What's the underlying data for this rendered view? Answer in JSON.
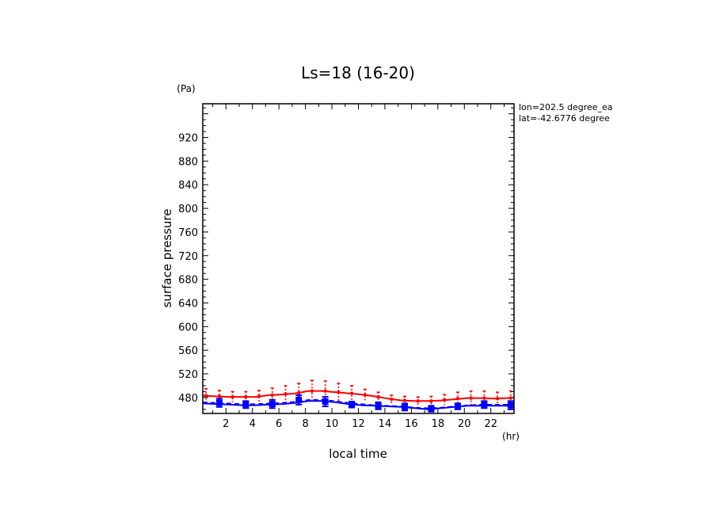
{
  "chart_data": {
    "type": "line",
    "title": "Ls=18 (16-20)",
    "xlabel": "local time",
    "ylabel": "surface pressure",
    "x_unit": "(hr)",
    "y_unit": "(Pa)",
    "annotations": [
      "lon=202.5 degree_ea",
      "lat=-42.6776 degree"
    ],
    "xlim": [
      0.25,
      23.75
    ],
    "ylim": [
      453,
      977
    ],
    "x_ticks": [
      2,
      4,
      6,
      8,
      10,
      12,
      14,
      16,
      18,
      20,
      22
    ],
    "y_ticks": [
      480,
      520,
      560,
      600,
      640,
      680,
      720,
      760,
      800,
      840,
      880,
      920
    ],
    "x": [
      0.25,
      1.25,
      2.25,
      3.25,
      4.25,
      5.25,
      6.25,
      7.25,
      8.25,
      9.25,
      10.25,
      11.25,
      12.25,
      13.25,
      14.25,
      15.25,
      16.25,
      17.25,
      18.25,
      19.25,
      20.25,
      21.25,
      22.25,
      23.25,
      23.75
    ],
    "grid": false,
    "series": [
      {
        "color": "#ff0000",
        "values": [
          483,
          482,
          481,
          481,
          481,
          484,
          485,
          487,
          491,
          491,
          489,
          487,
          485,
          482,
          478,
          475,
          474,
          474,
          475,
          477,
          479,
          479,
          478,
          479,
          480
        ]
      },
      {
        "color": "#0000ff",
        "values": [
          470,
          469,
          468,
          467,
          467,
          468,
          469,
          471,
          474,
          474,
          472,
          469,
          467,
          466,
          465,
          464,
          462,
          460,
          462,
          464,
          466,
          466,
          466,
          466,
          466
        ]
      },
      {
        "color": "#0000ff",
        "dashed": true,
        "values": [
          472,
          471,
          470,
          469,
          469,
          470,
          471,
          473,
          476,
          476,
          474,
          471,
          469,
          467,
          466,
          465,
          463,
          462,
          463,
          465,
          467,
          468,
          468,
          468,
          468
        ]
      }
    ],
    "error_points": {
      "red": {
        "color": "#ff0000",
        "x": [
          0.5,
          1.5,
          2.5,
          3.5,
          4.5,
          5.5,
          6.5,
          7.5,
          8.5,
          9.5,
          10.5,
          11.5,
          12.5,
          13.5,
          14.5,
          15.5,
          16.5,
          17.5,
          18.5,
          19.5,
          20.5,
          21.5,
          22.5,
          23.5
        ],
        "y": [
          483,
          482,
          481,
          481,
          482,
          484,
          486,
          488,
          491,
          491,
          489,
          487,
          484,
          481,
          477,
          475,
          474,
          474,
          476,
          478,
          479,
          479,
          478,
          479
        ],
        "err": [
          12,
          10,
          9,
          9,
          10,
          12,
          14,
          16,
          18,
          17,
          15,
          13,
          10,
          8,
          7,
          7,
          7,
          8,
          9,
          11,
          12,
          12,
          11,
          12
        ]
      },
      "blue": {
        "color": "#0000ff",
        "x": [
          1.5,
          3.5,
          5.5,
          7.5,
          9.5,
          11.5,
          13.5,
          15.5,
          17.5,
          19.5,
          21.5,
          23.5
        ],
        "y": [
          471,
          468,
          469,
          476,
          473,
          468,
          466,
          464,
          461,
          465,
          468,
          467
        ],
        "err": [
          7,
          6,
          7,
          8,
          8,
          5,
          6,
          6,
          5,
          5,
          6,
          7
        ]
      }
    }
  }
}
